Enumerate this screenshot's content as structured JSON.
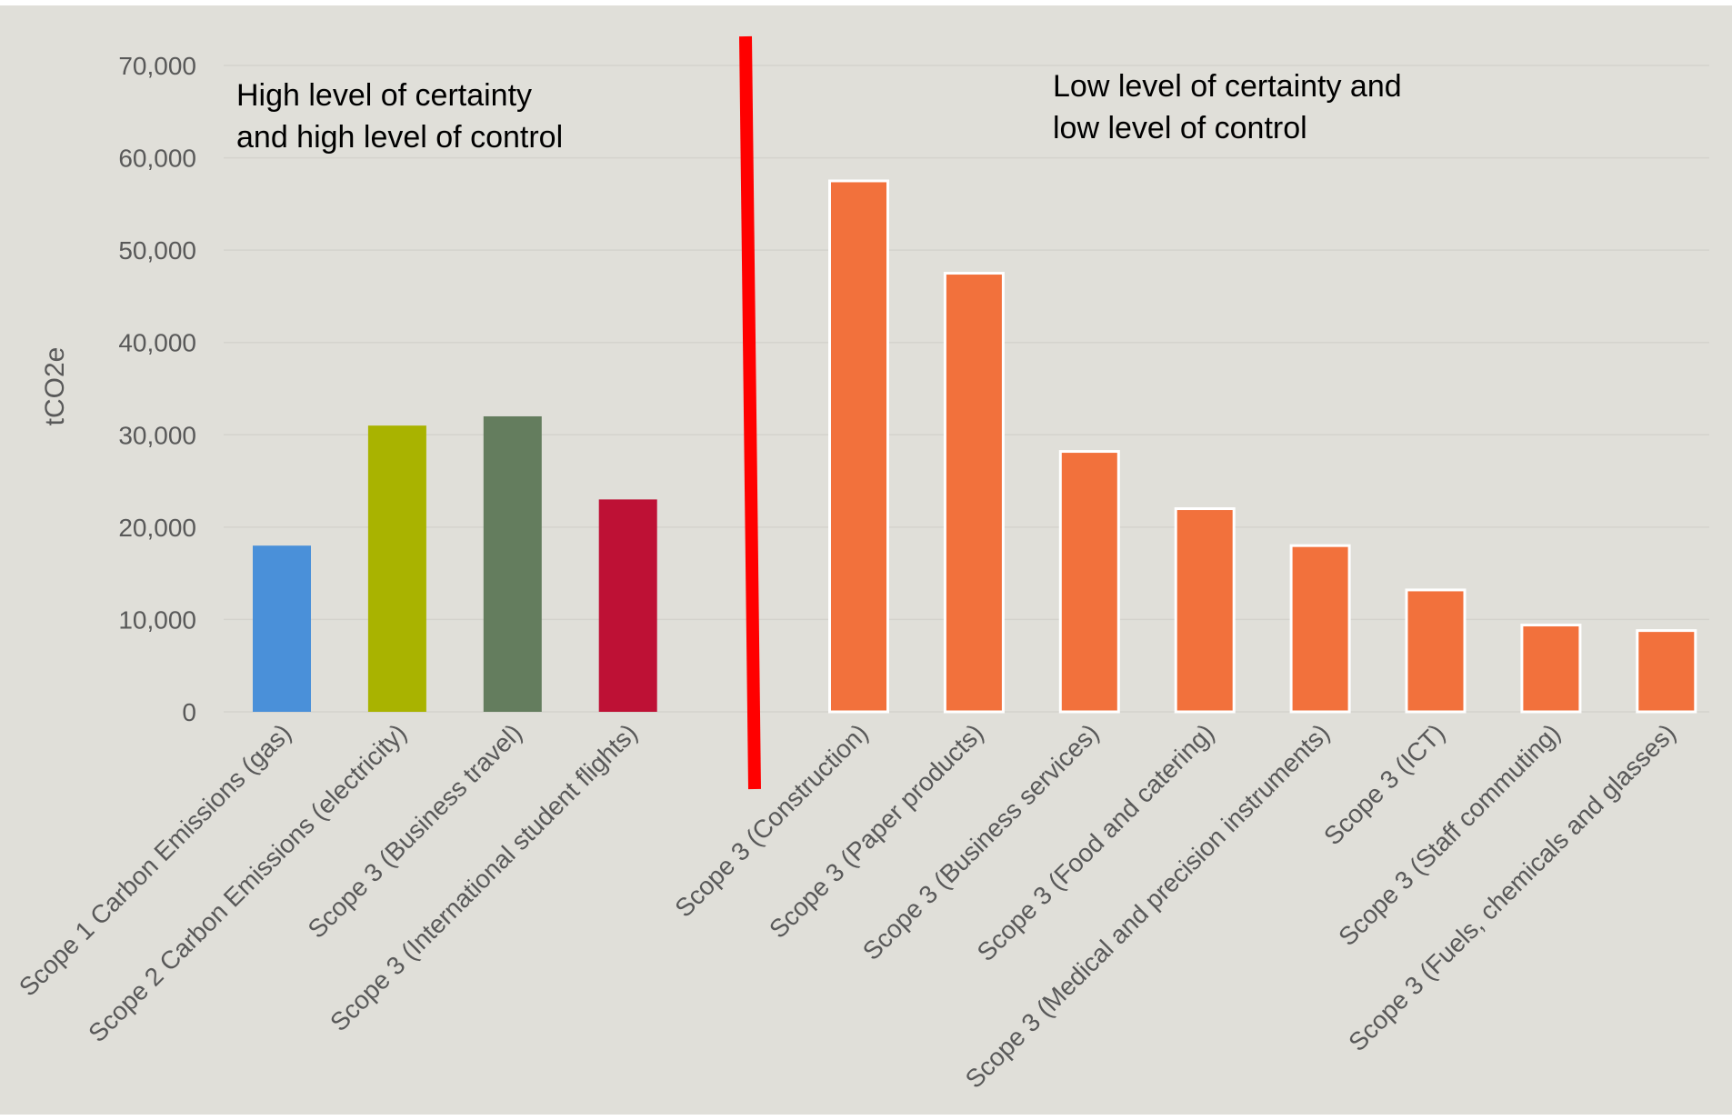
{
  "chart_data": {
    "type": "bar",
    "ylabel": "tCO2e",
    "ylim": [
      0,
      70000
    ],
    "yticks": [
      0,
      10000,
      20000,
      30000,
      40000,
      50000,
      60000,
      70000
    ],
    "ytick_labels": [
      "0",
      "10,000",
      "20,000",
      "30,000",
      "40,000",
      "50,000",
      "60,000",
      "70,000"
    ],
    "grid": true,
    "categories": [
      "Scope 1 Carbon Emissions (gas)",
      "Scope 2 Carbon Emissions (electricity)",
      "Scope 3 (Business travel)",
      "Scope 3 (International student flights)",
      "",
      "Scope 3 (Construction)",
      "Scope 3 (Paper products)",
      "Scope 3 (Business services)",
      "Scope 3 (Food and catering)",
      "Scope 3 (Medical and precision instruments)",
      "Scope 3 (ICT)",
      "Scope 3 (Staff commuting)",
      "Scope 3 (Fuels, chemicals and glasses)"
    ],
    "values": [
      18000,
      31000,
      32000,
      23000,
      null,
      57500,
      47500,
      28200,
      22000,
      18000,
      13200,
      9400,
      8800
    ],
    "bar_colors": [
      "#4a90d9",
      "#a9b300",
      "#647d5e",
      "#be1135",
      null,
      "#f2713c",
      "#f2713c",
      "#f2713c",
      "#f2713c",
      "#f2713c",
      "#f2713c",
      "#f2713c",
      "#f2713c"
    ],
    "annotations": [
      {
        "lines": [
          "High level of certainty",
          "and high level of control"
        ]
      },
      {
        "lines": [
          "Low level of certainty and",
          "low level of control"
        ]
      }
    ],
    "divider_color": "#ff0000"
  },
  "colors": {
    "background": "#e0dfd9",
    "grid": "#d4d3cd",
    "bar_outline": "#ffffff"
  }
}
